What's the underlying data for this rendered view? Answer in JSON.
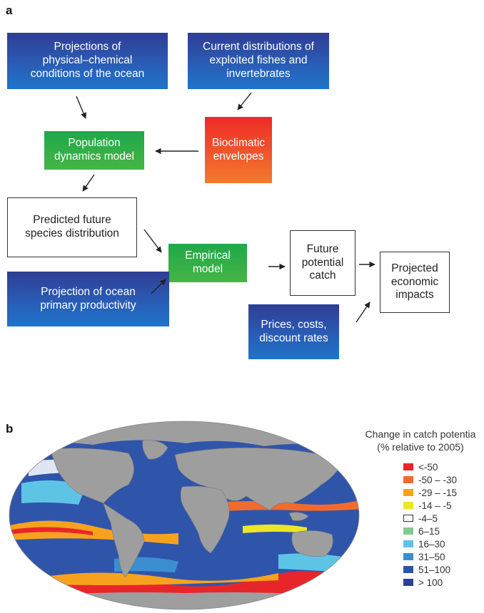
{
  "panel_a": {
    "label": "a",
    "boxes": {
      "projections_physical": "Projections of\nphysical–chemical\nconditions of the ocean",
      "current_distributions": "Current distributions of\nexploited fishes and\ninvertebrates",
      "population_dynamics": "Population\ndynamics model",
      "bioclimatic": "Bioclimatic\nenvelopes",
      "predicted_distribution": "Predicted future\nspecies distribution",
      "empirical_model": "Empirical\nmodel",
      "future_catch": "Future\npotential\ncatch",
      "projected_impacts": "Projected\neconomic\nimpacts",
      "primary_productivity": "Projection of ocean\nprimary productivity",
      "prices_costs": "Prices, costs,\ndiscount rates"
    }
  },
  "panel_b": {
    "label": "b",
    "legend_title": "Change in catch potentia\n(% relative to 2005)",
    "legend": [
      {
        "label": "<-50",
        "color": "#e8262a"
      },
      {
        "label": "-50 – -30",
        "color": "#f26b2c"
      },
      {
        "label": "-29 – -15",
        "color": "#f7a21f"
      },
      {
        "label": "-14 – -5",
        "color": "#ece626"
      },
      {
        "label": "-4–5",
        "color": "#ffffff"
      },
      {
        "label": "6–15",
        "color": "#86c98f"
      },
      {
        "label": "16–30",
        "color": "#5ec4e6"
      },
      {
        "label": "31–50",
        "color": "#3b8fd0"
      },
      {
        "label": "51–100",
        "color": "#2b56a8"
      },
      {
        "label": "> 100",
        "color": "#2d3f98"
      }
    ]
  }
}
